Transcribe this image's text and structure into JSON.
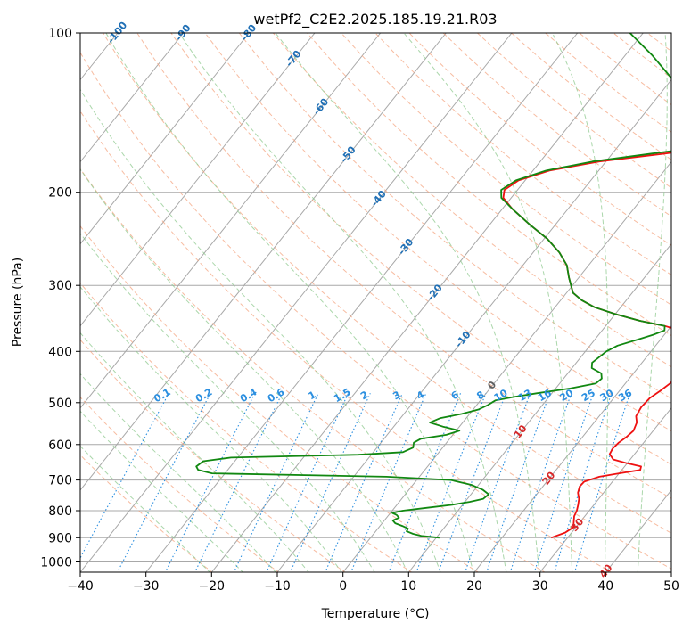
{
  "chart_data": {
    "type": "line",
    "subtype": "skew-T log-P diagram",
    "title": "wetPf2_C2E2.2025.185.19.21.R03",
    "xlabel": "Temperature (°C)",
    "ylabel": "Pressure (hPa)",
    "xlim": [
      -40,
      50
    ],
    "ylim": [
      1050,
      100
    ],
    "y_scale": "log",
    "grid": true,
    "x_ticks": [
      "−40",
      "−30",
      "−20",
      "−10",
      "0",
      "10",
      "20",
      "30",
      "40",
      "50"
    ],
    "y_ticks": [
      "100",
      "200",
      "300",
      "400",
      "500",
      "600",
      "700",
      "800",
      "900",
      "1000"
    ],
    "isotherm_color": "#a8a8a8",
    "dry_adiabat_color": "#f4a582",
    "moist_adiabat_color": "#8fc98f",
    "mixing_ratio_color": "#2b8fe0",
    "series": [
      {
        "name": "",
        "color": "#ee1111",
        "points": [
          [
            900,
            27.5
          ],
          [
            880,
            29.0
          ],
          [
            860,
            29.6
          ],
          [
            840,
            29.0
          ],
          [
            820,
            28.4
          ],
          [
            800,
            28.1
          ],
          [
            780,
            27.6
          ],
          [
            760,
            27.0
          ],
          [
            740,
            26.1
          ],
          [
            720,
            25.6
          ],
          [
            705,
            25.7
          ],
          [
            690,
            27.4
          ],
          [
            680,
            30.0
          ],
          [
            670,
            32.8
          ],
          [
            660,
            32.5
          ],
          [
            650,
            29.8
          ],
          [
            640,
            27.4
          ],
          [
            625,
            26.2
          ],
          [
            610,
            26.0
          ],
          [
            595,
            26.2
          ],
          [
            580,
            26.7
          ],
          [
            565,
            27.0
          ],
          [
            545,
            26.5
          ],
          [
            530,
            25.6
          ],
          [
            510,
            25.3
          ],
          [
            490,
            25.5
          ],
          [
            475,
            26.2
          ],
          [
            460,
            26.8
          ],
          [
            440,
            27.2
          ],
          [
            420,
            27.4
          ],
          [
            405,
            27.0
          ],
          [
            390,
            25.8
          ],
          [
            375,
            23.6
          ],
          [
            365,
            21.8
          ],
          [
            358,
            19.0
          ],
          [
            350,
            14.5
          ],
          [
            340,
            10.0
          ],
          [
            330,
            6.0
          ],
          [
            320,
            3.2
          ],
          [
            310,
            1.0
          ],
          [
            290,
            -1.5
          ],
          [
            275,
            -3.3
          ],
          [
            260,
            -6.0
          ],
          [
            245,
            -9.5
          ],
          [
            230,
            -14.0
          ],
          [
            215,
            -18.5
          ],
          [
            205,
            -21.2
          ],
          [
            198,
            -22.0
          ],
          [
            190,
            -21.0
          ],
          [
            182,
            -17.5
          ],
          [
            175,
            -11.0
          ],
          [
            169,
            -2.0
          ],
          [
            165,
            4.0
          ],
          [
            163,
            7.0
          ],
          [
            160,
            9.6
          ],
          [
            155,
            13.0
          ],
          [
            148,
            11.2
          ],
          [
            140,
            10.8
          ],
          [
            130,
            13.4
          ],
          [
            120,
            17.5
          ],
          [
            110,
            21.5
          ],
          [
            100,
            27.0
          ]
        ]
      },
      {
        "name": "",
        "color": "#118811",
        "points": [
          [
            900,
            10.5
          ],
          [
            893,
            7.5
          ],
          [
            885,
            6.0
          ],
          [
            875,
            4.7
          ],
          [
            865,
            4.6
          ],
          [
            855,
            3.4
          ],
          [
            845,
            2.0
          ],
          [
            835,
            1.3
          ],
          [
            825,
            1.9
          ],
          [
            815,
            1.2
          ],
          [
            808,
            0.3
          ],
          [
            800,
            1.6
          ],
          [
            790,
            5.0
          ],
          [
            780,
            8.3
          ],
          [
            770,
            10.7
          ],
          [
            760,
            12.4
          ],
          [
            745,
            12.7
          ],
          [
            730,
            11.2
          ],
          [
            715,
            8.9
          ],
          [
            700,
            5.2
          ],
          [
            690,
            -5.0
          ],
          [
            680,
            -32.0
          ],
          [
            670,
            -34.5
          ],
          [
            660,
            -35.2
          ],
          [
            645,
            -34.8
          ],
          [
            635,
            -31.0
          ],
          [
            627,
            -12.0
          ],
          [
            620,
            -5.5
          ],
          [
            608,
            -4.5
          ],
          [
            595,
            -5.0
          ],
          [
            585,
            -4.4
          ],
          [
            575,
            -1.0
          ],
          [
            565,
            0.5
          ],
          [
            555,
            -2.5
          ],
          [
            545,
            -5.0
          ],
          [
            535,
            -4.0
          ],
          [
            525,
            -1.2
          ],
          [
            515,
            0.8
          ],
          [
            505,
            1.7
          ],
          [
            495,
            2.3
          ],
          [
            488,
            4.5
          ],
          [
            480,
            7.7
          ],
          [
            470,
            12.2
          ],
          [
            460,
            15.5
          ],
          [
            450,
            15.8
          ],
          [
            440,
            15.1
          ],
          [
            430,
            13.0
          ],
          [
            420,
            12.4
          ],
          [
            410,
            12.8
          ],
          [
            400,
            13.2
          ],
          [
            390,
            14.2
          ],
          [
            380,
            16.5
          ],
          [
            372,
            18.3
          ],
          [
            365,
            19.5
          ],
          [
            358,
            19.0
          ],
          [
            350,
            14.5
          ],
          [
            340,
            10.0
          ],
          [
            330,
            6.0
          ],
          [
            320,
            3.2
          ],
          [
            310,
            1.0
          ],
          [
            290,
            -1.5
          ],
          [
            275,
            -3.3
          ],
          [
            260,
            -6.0
          ],
          [
            245,
            -9.5
          ],
          [
            230,
            -14.0
          ],
          [
            215,
            -18.5
          ],
          [
            205,
            -21.5
          ],
          [
            198,
            -22.5
          ],
          [
            190,
            -21.4
          ],
          [
            182,
            -18.0
          ],
          [
            175,
            -12.0
          ],
          [
            169,
            -4.0
          ],
          [
            165,
            2.0
          ],
          [
            163,
            4.0
          ],
          [
            160,
            3.0
          ],
          [
            155,
            -1.0
          ],
          [
            148,
            -2.0
          ],
          [
            140,
            -3.5
          ],
          [
            130,
            -6.5
          ],
          [
            120,
            -11.0
          ],
          [
            110,
            -16.0
          ],
          [
            100,
            -22.0
          ]
        ]
      }
    ],
    "mixing_ratio_labels": [
      "0.1",
      "0.2",
      "0.4",
      "0.6",
      "1",
      "1.5",
      "2",
      "3",
      "4",
      "6",
      "8",
      "10",
      "13",
      "16",
      "20",
      "25",
      "30",
      "36"
    ],
    "isotherm_labels_blue": [
      "-100",
      "-90",
      "-80",
      "-70",
      "-60",
      "-50",
      "-40",
      "-30",
      "-20",
      "-10"
    ],
    "isotherm_labels_gray": [
      "0"
    ],
    "isotherm_labels_red": [
      "10",
      "20",
      "30",
      "40"
    ]
  }
}
